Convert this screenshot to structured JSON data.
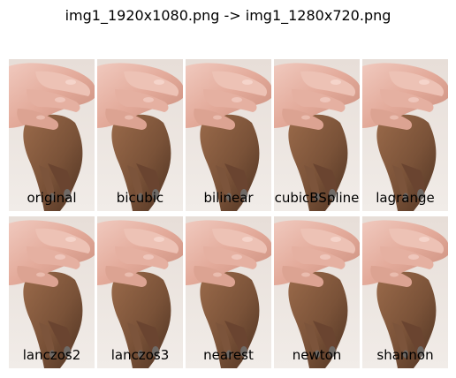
{
  "figure": {
    "title": "img1_1920x1080.png -> img1_1280x720.png"
  },
  "panels": [
    {
      "label": "original"
    },
    {
      "label": "bicubic"
    },
    {
      "label": "bilinear"
    },
    {
      "label": "cubicBSpline"
    },
    {
      "label": "lagrange"
    },
    {
      "label": "lanczos2"
    },
    {
      "label": "lanczos3"
    },
    {
      "label": "nearest"
    },
    {
      "label": "newton"
    },
    {
      "label": "shannon"
    }
  ],
  "colors": {
    "background": "#ebe5e0",
    "light_hand": "#e8b9ac",
    "dark_hand": "#7a5238",
    "fingernail": "#6f6a66"
  }
}
